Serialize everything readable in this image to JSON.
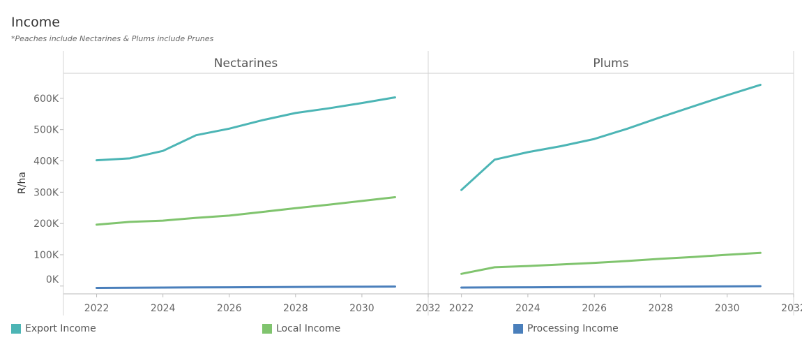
{
  "title": "Income",
  "subtitle": "*Peaches include Nectarines & Plums include Prunes",
  "chart_data": {
    "type": "line",
    "ylabel": "R/ha",
    "ylim": [
      -25000,
      680000
    ],
    "yticks": [
      0,
      100000,
      200000,
      300000,
      400000,
      500000,
      600000
    ],
    "ytick_labels": [
      "0K",
      "100K",
      "200K",
      "300K",
      "400K",
      "500K",
      "600K"
    ],
    "xlim": [
      2021,
      2032
    ],
    "xticks": [
      2022,
      2024,
      2026,
      2028,
      2030,
      2032
    ],
    "colors": {
      "Export Income": "#4cb5b5",
      "Local Income": "#80c46e",
      "Processing Income": "#4a7fbb"
    },
    "panels": [
      {
        "name": "Nectarines",
        "x": [
          2022,
          2023,
          2024,
          2025,
          2026,
          2027,
          2028,
          2029,
          2030,
          2031
        ],
        "series": [
          {
            "name": "Export Income",
            "values": [
              402000,
              408000,
              432000,
              482000,
              503000,
              530000,
              553000,
              568000,
              585000,
              603000
            ]
          },
          {
            "name": "Local Income",
            "values": [
              196000,
              205000,
              209000,
              218000,
              225000,
              237000,
              249000,
              260000,
              272000,
              284000
            ]
          },
          {
            "name": "Processing Income",
            "values": [
              -6000,
              -5500,
              -5000,
              -4500,
              -4000,
              -3500,
              -3000,
              -2500,
              -2000,
              -1500
            ]
          }
        ]
      },
      {
        "name": "Plums",
        "x": [
          2022,
          2023,
          2024,
          2025,
          2026,
          2027,
          2028,
          2029,
          2030,
          2031
        ],
        "series": [
          {
            "name": "Export Income",
            "values": [
              307000,
              404000,
              428000,
              447000,
              470000,
              503000,
              540000,
              575000,
              610000,
              643000
            ]
          },
          {
            "name": "Local Income",
            "values": [
              39000,
              60000,
              64000,
              69000,
              74000,
              80000,
              87000,
              93000,
              100000,
              106000
            ]
          },
          {
            "name": "Processing Income",
            "values": [
              -5000,
              -4500,
              -4000,
              -3500,
              -3000,
              -2500,
              -2000,
              -1500,
              -1000,
              -500
            ]
          }
        ]
      }
    ],
    "legend": [
      "Export Income",
      "Local Income",
      "Processing Income"
    ],
    "legend_position": "bottom"
  }
}
